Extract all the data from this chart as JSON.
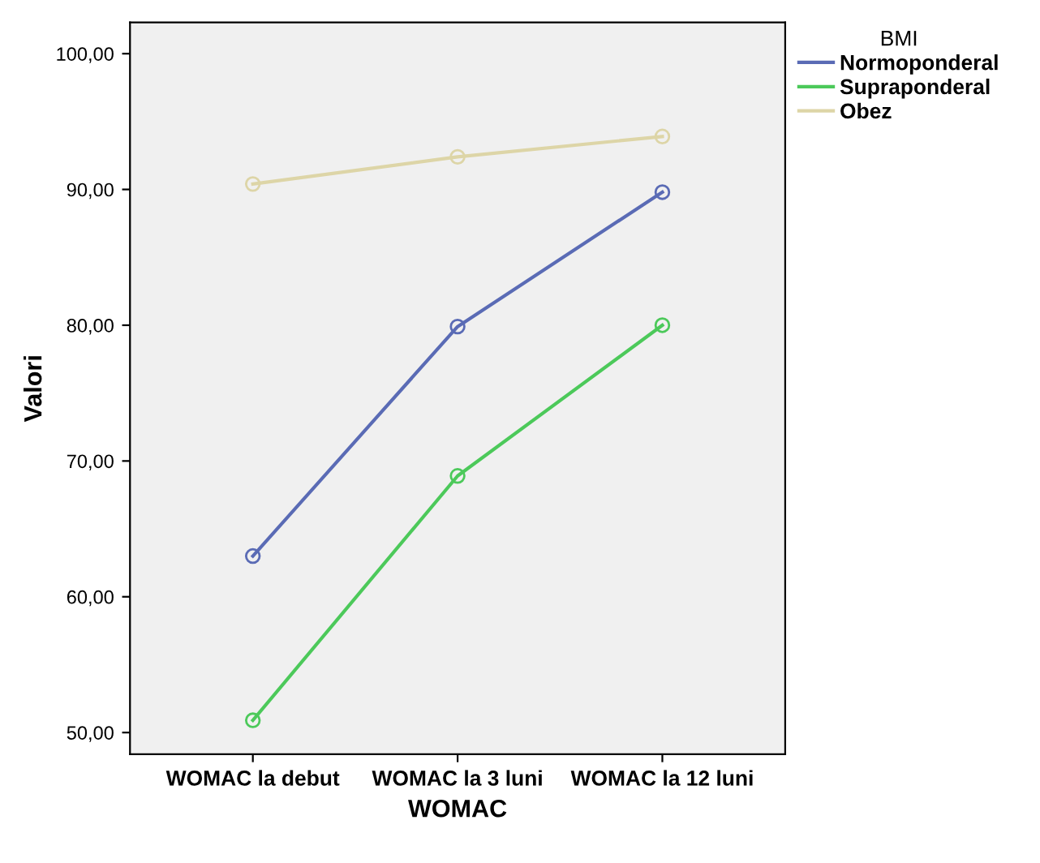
{
  "chart_data": {
    "type": "line",
    "xlabel": "WOMAC",
    "ylabel": "Valori",
    "legend_title": "BMI",
    "legend": "top right",
    "categories": [
      "WOMAC la debut",
      "WOMAC la 3 luni",
      "WOMAC la 12 luni"
    ],
    "series": [
      {
        "name": "Normoponderal",
        "color": "#5a6bb5",
        "values": [
          63.0,
          79.9,
          89.8
        ]
      },
      {
        "name": "Supraponderal",
        "color": "#4cc95a",
        "values": [
          50.9,
          68.9,
          80.0
        ]
      },
      {
        "name": "Obez",
        "color": "#ddd5a7",
        "values": [
          90.4,
          92.4,
          93.9
        ]
      }
    ],
    "ylim": [
      48.4,
      102.3
    ],
    "yticks": [
      {
        "value": 50,
        "label": "50,00"
      },
      {
        "value": 60,
        "label": "60,00"
      },
      {
        "value": 70,
        "label": "70,00"
      },
      {
        "value": 80,
        "label": "80,00"
      },
      {
        "value": 90,
        "label": "90,00"
      },
      {
        "value": 100,
        "label": "100,00"
      }
    ],
    "marker": "circle",
    "line_style": "solid",
    "grid": false
  }
}
